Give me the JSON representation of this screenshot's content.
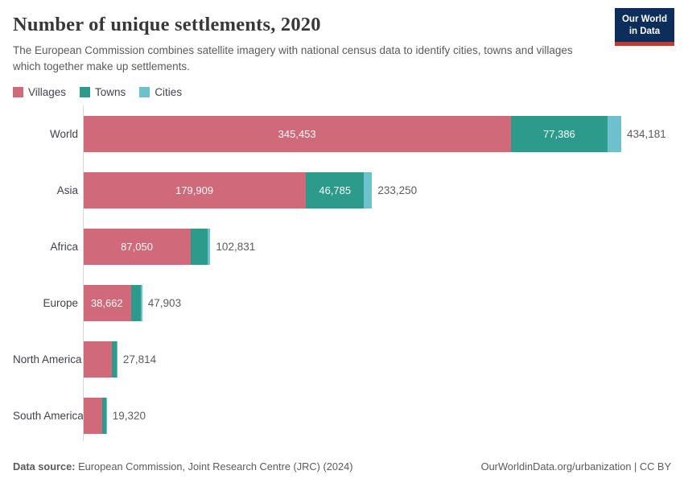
{
  "header": {
    "title": "Number of unique settlements, 2020",
    "subtitle": "The European Commission combines satellite imagery with national census data to identify cities, towns and villages which together make up settlements.",
    "logo": {
      "line1": "Our World",
      "line2": "in Data"
    }
  },
  "brand": {
    "logo_navy": "#0d2e5b",
    "logo_red": "#c23b33"
  },
  "legend": {
    "items": [
      {
        "label": "Villages",
        "color": "#d0697a"
      },
      {
        "label": "Towns",
        "color": "#2c9b8c"
      },
      {
        "label": "Cities",
        "color": "#6dc1cd"
      }
    ]
  },
  "chart_data": {
    "type": "bar",
    "orientation": "horizontal",
    "stacked": true,
    "title": "Number of unique settlements, 2020",
    "series_names": [
      "Villages",
      "Towns",
      "Cities"
    ],
    "categories": [
      "World",
      "Asia",
      "Africa",
      "Europe",
      "North America",
      "South America"
    ],
    "colors": {
      "villages": "#d0697a",
      "towns": "#2c9b8c",
      "cities": "#6dc1cd"
    },
    "x_max": 434181,
    "grid": false,
    "axis_ticks_visible": false,
    "note": "Towns/Cities splits without printed labels are estimated from bar pixel widths; each row sums to its printed total.",
    "rows": [
      {
        "name": "World",
        "villages": 345453,
        "towns": 77386,
        "cities": 11342,
        "total": 434181,
        "labels": {
          "villages": "345,453",
          "towns": "77,386",
          "total": "434,181"
        }
      },
      {
        "name": "Asia",
        "villages": 179909,
        "towns": 46785,
        "cities": 6556,
        "total": 233250,
        "labels": {
          "villages": "179,909",
          "towns": "46,785",
          "total": "233,250"
        }
      },
      {
        "name": "Africa",
        "villages": 87050,
        "towns": 13800,
        "cities": 1981,
        "total": 102831,
        "labels": {
          "villages": "87,050",
          "total": "102,831"
        }
      },
      {
        "name": "Europe",
        "villages": 38662,
        "towns": 8050,
        "cities": 1191,
        "total": 47903,
        "labels": {
          "villages": "38,662",
          "total": "47,903"
        }
      },
      {
        "name": "North America",
        "villages": 23350,
        "towns": 3900,
        "cities": 564,
        "total": 27814,
        "labels": {
          "total": "27,814"
        }
      },
      {
        "name": "South America",
        "villages": 15500,
        "towns": 3520,
        "cities": 300,
        "total": 19320,
        "labels": {
          "total": "19,320"
        }
      }
    ]
  },
  "footer": {
    "datasource_label": "Data source:",
    "datasource_text": " European Commission, Joint Research Centre (JRC) (2024)",
    "credit": "OurWorldinData.org/urbanization | CC BY"
  }
}
